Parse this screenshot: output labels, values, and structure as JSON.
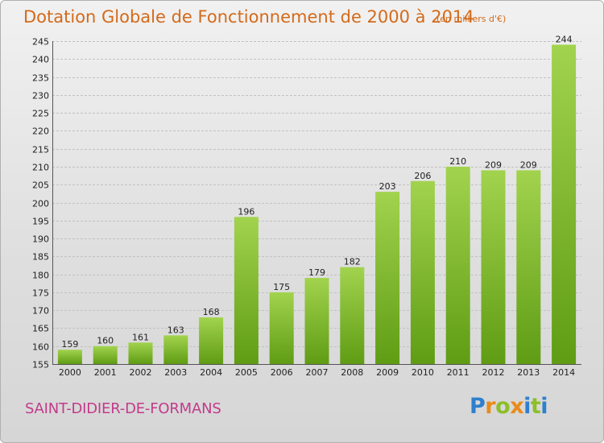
{
  "title": "Dotation Globale de Fonctionnement de 2000 à 2014",
  "subtitle": "(en milliers d'€)",
  "commune": "SAINT-DIDIER-DE-FORMANS",
  "logo": {
    "text": "Proxiti",
    "letters": [
      {
        "ch": "P",
        "color": "#2f7fcf"
      },
      {
        "ch": "r",
        "color": "#e98b1a"
      },
      {
        "ch": "o",
        "color": "#8cbf2a"
      },
      {
        "ch": "x",
        "color": "#e98b1a"
      },
      {
        "ch": "i",
        "color": "#2f7fcf"
      },
      {
        "ch": "t",
        "color": "#8cbf2a"
      },
      {
        "ch": "i",
        "color": "#2f7fcf"
      }
    ]
  },
  "colors": {
    "title": "#d46a1a",
    "commune": "#c23b8b",
    "bar_top": "#a2d34e",
    "bar_bottom": "#5f9c14"
  },
  "chart_data": {
    "type": "bar",
    "title": "Dotation Globale de Fonctionnement de 2000 à 2014",
    "subtitle": "(en milliers d'€)",
    "categories": [
      "2000",
      "2001",
      "2002",
      "2003",
      "2004",
      "2005",
      "2006",
      "2007",
      "2008",
      "2009",
      "2010",
      "2011",
      "2012",
      "2013",
      "2014"
    ],
    "values": [
      159,
      160,
      161,
      163,
      168,
      196,
      175,
      179,
      182,
      203,
      206,
      210,
      209,
      209,
      244
    ],
    "ylim": [
      155,
      245
    ],
    "yticks": [
      155,
      160,
      165,
      170,
      175,
      180,
      185,
      190,
      195,
      200,
      205,
      210,
      215,
      220,
      225,
      230,
      235,
      240,
      245
    ],
    "grid": true,
    "data_labels": true
  }
}
